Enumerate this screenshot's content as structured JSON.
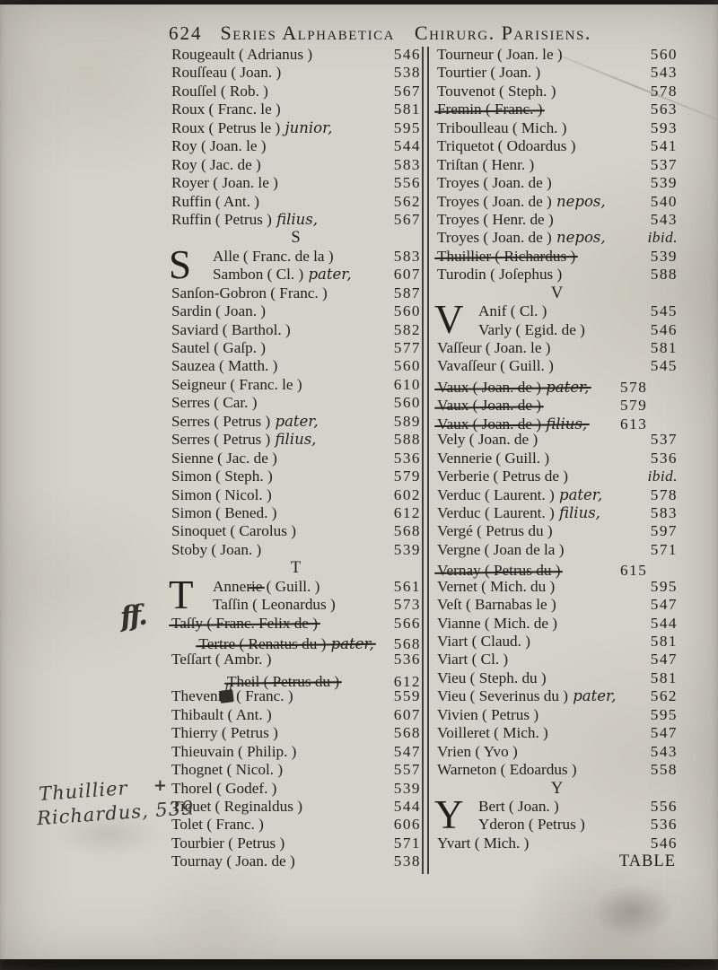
{
  "header": {
    "page_number": "624",
    "title_left": "Series Alphabetica",
    "title_right": "Chirurg. Parisiens."
  },
  "marginalia": {
    "line1": "Thuillier",
    "line2": "Richardus, 539"
  },
  "colors": {
    "paper": "#d5d2c9",
    "ink": "#211f1c",
    "handwriting": "#35312c"
  },
  "columns": [
    {
      "items": [
        {
          "t": "e",
          "n": "Rougeault ( Adrianus )",
          "p": "546"
        },
        {
          "t": "e",
          "n": "Rouſſeau ( Joan. )",
          "p": "538"
        },
        {
          "t": "e",
          "n": "Rouſſel ( Rob. )",
          "p": "567"
        },
        {
          "t": "e",
          "n": "Roux ( Franc. le )",
          "p": "581"
        },
        {
          "t": "e",
          "n": "Roux ( Petrus le )",
          "q": "junior,",
          "p": "595"
        },
        {
          "t": "e",
          "n": "Roy ( Joan. le )",
          "p": "544"
        },
        {
          "t": "e",
          "n": "Roy ( Jac. de )",
          "p": "583"
        },
        {
          "t": "e",
          "n": "Royer ( Joan. le )",
          "p": "556"
        },
        {
          "t": "e",
          "n": "Ruffin ( Ant. )",
          "p": "562"
        },
        {
          "t": "e",
          "n": "Ruffin ( Petrus )",
          "q": "filius,",
          "p": "567"
        },
        {
          "t": "h",
          "x": "S"
        },
        {
          "t": "e",
          "dc": "S",
          "ind": true,
          "n": "Alle ( Franc. de la )",
          "p": "583"
        },
        {
          "t": "e",
          "ind": true,
          "n": "Sambon ( Cl. )",
          "q": "pater,",
          "p": "607"
        },
        {
          "t": "e",
          "n": "Sanſon-Gobron ( Franc. )",
          "p": "587"
        },
        {
          "t": "e",
          "n": "Sardin ( Joan. )",
          "p": "560"
        },
        {
          "t": "e",
          "n": "Saviard ( Barthol. )",
          "p": "582"
        },
        {
          "t": "e",
          "n": "Sautel ( Gaſp. )",
          "p": "577"
        },
        {
          "t": "e",
          "n": "Sauzea ( Matth. )",
          "p": "560"
        },
        {
          "t": "e",
          "n": "Seigneur ( Franc. le )",
          "p": "610"
        },
        {
          "t": "e",
          "n": "Serres ( Car. )",
          "p": "560"
        },
        {
          "t": "e",
          "n": "Serres ( Petrus )",
          "q": "pater,",
          "p": "589"
        },
        {
          "t": "e",
          "n": "Serres ( Petrus )",
          "q": "filius,",
          "p": "588"
        },
        {
          "t": "e",
          "n": "Sienne ( Jac. de )",
          "p": "536"
        },
        {
          "t": "e",
          "n": "Simon ( Steph. )",
          "p": "579"
        },
        {
          "t": "e",
          "n": "Simon ( Nicol. )",
          "p": "602"
        },
        {
          "t": "e",
          "n": "Simon ( Bened. )",
          "p": "612"
        },
        {
          "t": "e",
          "n": "Sinoquet ( Carolus )",
          "p": "568"
        },
        {
          "t": "e",
          "n": "Stoby ( Joan. )",
          "p": "539"
        },
        {
          "t": "h",
          "x": "T"
        },
        {
          "t": "e",
          "dc": "T",
          "ind": true,
          "segs": [
            {
              "x": "Anner"
            },
            {
              "x": "ie",
              "s": true
            },
            {
              "x": " ( Guill. )"
            }
          ],
          "p": "561"
        },
        {
          "t": "e",
          "ind": true,
          "n": "Taſſin ( Leonardus )",
          "p": "573"
        },
        {
          "t": "e",
          "n": "Taſſy ( Franc. Felix de )",
          "struck": true,
          "p": "566",
          "ml": {
            "text": "ff.",
            "cls": "ml-ff"
          }
        },
        {
          "t": "e",
          "n": "Tertre ( Renatus du )",
          "q": "pater,",
          "struck": true,
          "p": "568",
          "ml": {
            "text": "D·",
            "cls": "slashD ml-tertre"
          }
        },
        {
          "t": "e",
          "n": "Teſſart ( Ambr. )",
          "p": "536"
        },
        {
          "t": "e",
          "n": "Theil ( Petrus du )",
          "struck": true,
          "p": "612",
          "ml": {
            "text": "D",
            "cls": "slashD ml-theil"
          }
        },
        {
          "t": "e",
          "segs": [
            {
              "x": "Theveni"
            },
            {
              "x": "ts",
              "blot": true,
              "sup": "n"
            },
            {
              "x": " ( Franc. )"
            }
          ],
          "p": "559"
        },
        {
          "t": "e",
          "n": "Thibault ( Ant. )",
          "p": "607"
        },
        {
          "t": "e",
          "n": "Thierry ( Petrus )",
          "p": "568"
        },
        {
          "t": "e",
          "n": "Thieuvain ( Philip. )",
          "p": "547"
        },
        {
          "t": "e",
          "n": "Thognet ( Nicol. )",
          "p": "557"
        },
        {
          "t": "e",
          "n": "Thorel ( Godef. )",
          "p": "539",
          "ml": {
            "text": "+",
            "cls": "ml-plus"
          }
        },
        {
          "t": "e",
          "n": "Tiquet ( Reginaldus )",
          "p": "544"
        },
        {
          "t": "e",
          "n": "Tolet ( Franc. )",
          "p": "606"
        },
        {
          "t": "e",
          "n": "Tourbier ( Petrus )",
          "p": "571"
        },
        {
          "t": "e",
          "n": "Tournay ( Joan. de )",
          "p": "538"
        }
      ]
    },
    {
      "items": [
        {
          "t": "e",
          "n": "Tourneur ( Joan. le )",
          "p": "560"
        },
        {
          "t": "e",
          "n": "Tourtier ( Joan. )",
          "p": "543"
        },
        {
          "t": "e",
          "n": "Touvenot ( Steph. )",
          "p": "578"
        },
        {
          "t": "e",
          "n": "Fremin ( Franc. )",
          "struck": true,
          "p": "563"
        },
        {
          "t": "e",
          "n": "Triboulleau ( Mich. )",
          "p": "593"
        },
        {
          "t": "e",
          "n": "Triquetot ( Odoardus )",
          "p": "541"
        },
        {
          "t": "e",
          "n": "Triſtan ( Henr. )",
          "p": "537"
        },
        {
          "t": "e",
          "n": "Troyes ( Joan. de )",
          "p": "539"
        },
        {
          "t": "e",
          "n": "Troyes ( Joan. de )",
          "q": "nepos,",
          "p": "540"
        },
        {
          "t": "e",
          "n": "Troyes ( Henr. de )",
          "p": "543"
        },
        {
          "t": "e",
          "n": "Troyes ( Joan. de )",
          "q": "nepos,",
          "p": "ibid.",
          "pi": true
        },
        {
          "t": "e",
          "n": "Thuillier ( Richardus )",
          "struck": true,
          "p": "539"
        },
        {
          "t": "e",
          "n": "Turodin ( Joſephus )",
          "p": "588"
        },
        {
          "t": "h",
          "x": "V"
        },
        {
          "t": "e",
          "dc": "V",
          "ind": true,
          "n": "Anif ( Cl. )",
          "p": "545"
        },
        {
          "t": "e",
          "ind": true,
          "n": "Varly ( Egid. de )",
          "p": "546"
        },
        {
          "t": "e",
          "n": "Vaſſeur ( Joan. le )",
          "p": "581"
        },
        {
          "t": "e",
          "n": "Vavaſſeur ( Guill. )",
          "p": "545"
        },
        {
          "t": "e",
          "n": "Vaux ( Joan. de )",
          "q": "pater,",
          "struck": true,
          "p": "578",
          "mr": {
            "text": "D",
            "cls": "slashD mr-d"
          }
        },
        {
          "t": "e",
          "n": "Vaux ( Joan. de )",
          "struck": true,
          "p": "579",
          "mr": {
            "text": "D",
            "cls": "slashD mr-d"
          }
        },
        {
          "t": "e",
          "n": "Vaux ( Joan. de )",
          "q": "filius,",
          "struck": true,
          "p": "613",
          "mr": {
            "text": "D",
            "cls": "slashD mr-d bar"
          }
        },
        {
          "t": "e",
          "n": "Vely ( Joan. de )",
          "p": "537"
        },
        {
          "t": "e",
          "n": "Vennerie ( Guill. )",
          "p": "536"
        },
        {
          "t": "e",
          "n": "Verberie ( Petrus de )",
          "p": "ibid.",
          "pi": true
        },
        {
          "t": "e",
          "n": "Verduc ( Laurent. )",
          "q": "pater,",
          "p": "578"
        },
        {
          "t": "e",
          "n": "Verduc ( Laurent. )",
          "q": "filius,",
          "p": "583"
        },
        {
          "t": "e",
          "n": "Vergé ( Petrus du )",
          "p": "597"
        },
        {
          "t": "e",
          "n": "Vergne ( Joan de la )",
          "p": "571"
        },
        {
          "t": "e",
          "n": "Vernay ( Petrus du )",
          "struck": true,
          "p": "615",
          "mr": {
            "text": "D",
            "cls": "slashD mr-d bar"
          }
        },
        {
          "t": "e",
          "n": "Vernet ( Mich. du )",
          "p": "595"
        },
        {
          "t": "e",
          "n": "Veſt ( Barnabas le )",
          "p": "547"
        },
        {
          "t": "e",
          "n": "Vianne ( Mich. de )",
          "p": "544"
        },
        {
          "t": "e",
          "n": "Viart ( Claud. )",
          "p": "581"
        },
        {
          "t": "e",
          "n": "Viart ( Cl. )",
          "p": "547"
        },
        {
          "t": "e",
          "n": "Vieu ( Steph. du )",
          "p": "581"
        },
        {
          "t": "e",
          "n": "Vieu ( Severinus du )",
          "q": "pater,",
          "p": "562"
        },
        {
          "t": "e",
          "n": "Vivien ( Petrus )",
          "p": "595"
        },
        {
          "t": "e",
          "n": "Voilleret ( Mich. )",
          "p": "547"
        },
        {
          "t": "e",
          "n": "Vrien ( Yvo )",
          "p": "543"
        },
        {
          "t": "e",
          "n": "Warneton ( Edoardus )",
          "p": "558"
        },
        {
          "t": "h",
          "x": "Y"
        },
        {
          "t": "e",
          "dc": "Y",
          "ind": true,
          "n": "Bert ( Joan. )",
          "p": "556"
        },
        {
          "t": "e",
          "ind": true,
          "n": "Yderon ( Petrus )",
          "p": "536"
        },
        {
          "t": "e",
          "n": "Yvart ( Mich. )",
          "p": "546"
        },
        {
          "t": "cw",
          "x": "TABLE"
        }
      ]
    }
  ]
}
